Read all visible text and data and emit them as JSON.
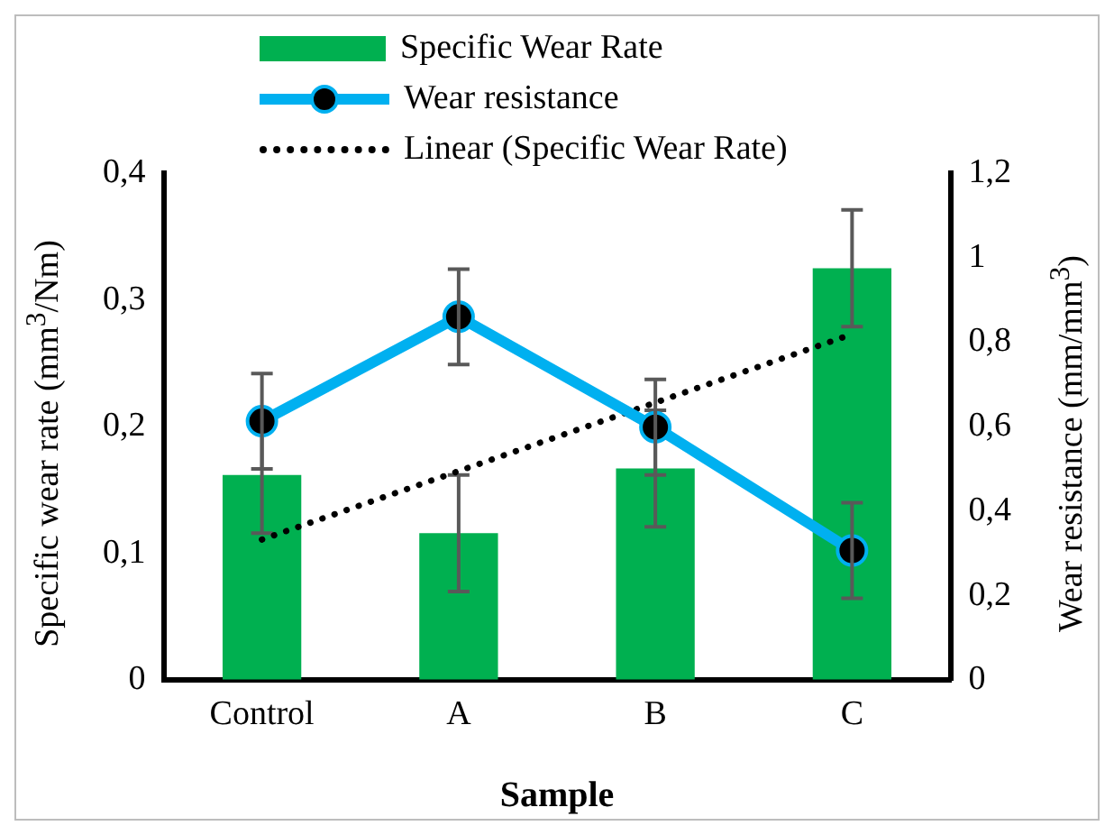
{
  "chart_data": {
    "type": "bar",
    "categories": [
      "Control",
      "A",
      "B",
      "C"
    ],
    "xlabel": "Sample",
    "ylabel": "Specific wear rate (mm$^{3}$/Nm)",
    "y2label": "Wear resistance (mm/mm$^{3}$)",
    "ylim": [
      0,
      0.4
    ],
    "yticks": [
      0,
      {
        "value": 0.1,
        "label": "0,1"
      },
      {
        "value": 0.2,
        "label": "0,2"
      },
      {
        "value": 0.3,
        "label": "0,3"
      },
      {
        "value": 0.4,
        "label": "0,4"
      }
    ],
    "y2lim": [
      0,
      1.2
    ],
    "y2ticks": [
      0,
      {
        "value": 0.2,
        "label": "0,2"
      },
      {
        "value": 0.4,
        "label": "0,4"
      },
      {
        "value": 0.6,
        "label": "0,6"
      },
      {
        "value": 0.8,
        "label": "0,8"
      },
      1,
      {
        "value": 1.2,
        "label": "1,2"
      }
    ],
    "grid": false,
    "legend": "top",
    "series": [
      {
        "name": "Specific Wear Rate",
        "color": "#00b050",
        "values": [
          0.162,
          0.116,
          0.167,
          0.325
        ],
        "errors": [
          0.046,
          0.046,
          0.046,
          0.046
        ]
      },
      {
        "name": "Wear resistance",
        "type": "line",
        "axis": "y2",
        "color": "#00b0f0",
        "marker": "circle",
        "values": [
          0.613,
          0.86,
          0.599,
          0.307
        ],
        "errors": [
          0.113,
          0.113,
          0.113,
          0.113
        ]
      },
      {
        "name": "Linear (Specific Wear Rate)",
        "type": "line",
        "color": "#000000",
        "line_style": "dotted",
        "marker": "none",
        "values": [
          0.111,
          0.165,
          0.219,
          0.273
        ]
      }
    ]
  }
}
